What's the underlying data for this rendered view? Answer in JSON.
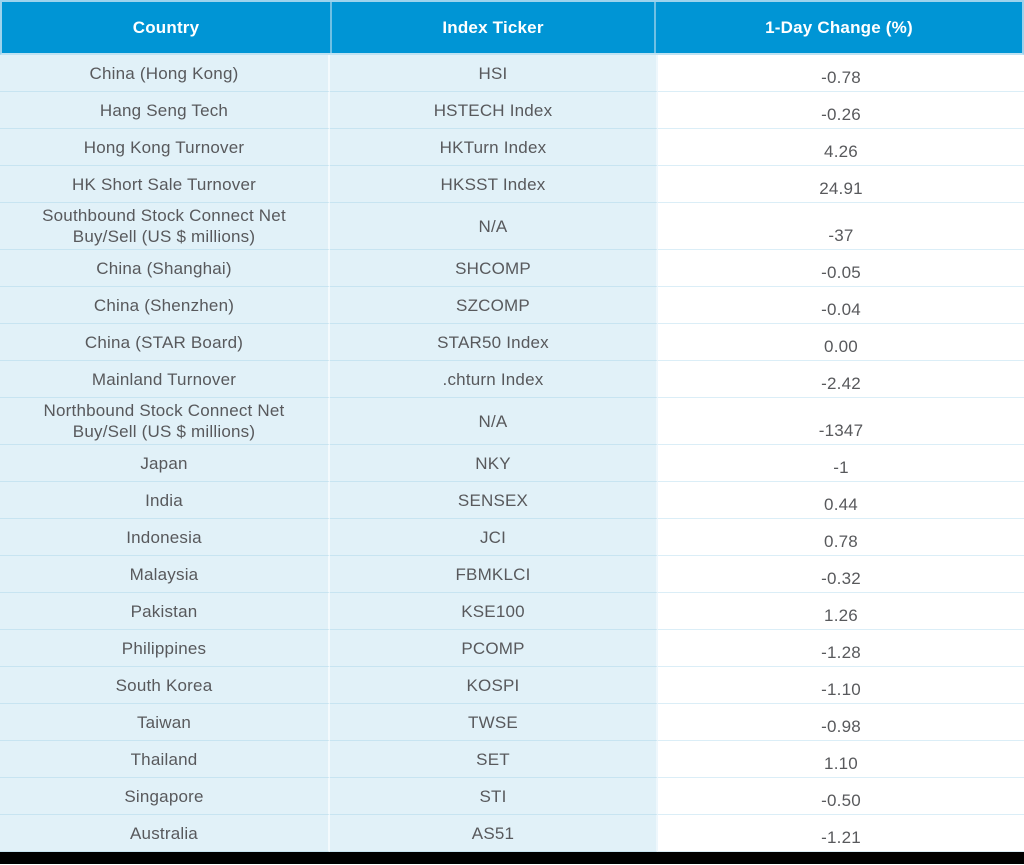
{
  "chart_data": {
    "type": "table",
    "title": "",
    "columns": [
      "Country",
      "Index Ticker",
      "1-Day Change (%)"
    ],
    "rows": [
      {
        "country": "China (Hong Kong)",
        "ticker": "HSI",
        "change": "-0.78"
      },
      {
        "country": "Hang Seng Tech",
        "ticker": "HSTECH Index",
        "change": "-0.26"
      },
      {
        "country": "Hong Kong Turnover",
        "ticker": "HKTurn Index",
        "change": "4.26"
      },
      {
        "country": "HK Short Sale Turnover",
        "ticker": "HKSST Index",
        "change": "24.91"
      },
      {
        "country": "Southbound Stock Connect Net\nBuy/Sell (US $ millions)",
        "ticker": "N/A",
        "change": "-37"
      },
      {
        "country": "China (Shanghai)",
        "ticker": "SHCOMP",
        "change": "-0.05"
      },
      {
        "country": "China (Shenzhen)",
        "ticker": "SZCOMP",
        "change": "-0.04"
      },
      {
        "country": "China (STAR Board)",
        "ticker": "STAR50 Index",
        "change": "0.00"
      },
      {
        "country": "Mainland Turnover",
        "ticker": ".chturn Index",
        "change": "-2.42"
      },
      {
        "country": "Northbound Stock Connect Net\nBuy/Sell (US $ millions)",
        "ticker": "N/A",
        "change": "-1347"
      },
      {
        "country": "Japan",
        "ticker": "NKY",
        "change": "-1"
      },
      {
        "country": "India",
        "ticker": "SENSEX",
        "change": "0.44"
      },
      {
        "country": "Indonesia",
        "ticker": "JCI",
        "change": "0.78"
      },
      {
        "country": "Malaysia",
        "ticker": "FBMKLCI",
        "change": "-0.32"
      },
      {
        "country": "Pakistan",
        "ticker": "KSE100",
        "change": "1.26"
      },
      {
        "country": "Philippines",
        "ticker": "PCOMP",
        "change": "-1.28"
      },
      {
        "country": "South Korea",
        "ticker": "KOSPI",
        "change": "-1.10"
      },
      {
        "country": "Taiwan",
        "ticker": "TWSE",
        "change": "-0.98"
      },
      {
        "country": "Thailand",
        "ticker": "SET",
        "change": "1.10"
      },
      {
        "country": "Singapore",
        "ticker": "STI",
        "change": "-0.50"
      },
      {
        "country": "Australia",
        "ticker": "AS51",
        "change": "-1.21"
      }
    ],
    "layout": {
      "header_position": "top",
      "gridlines": "horizontal",
      "value_column_alignment": "center"
    }
  },
  "colors": {
    "header_bg": "#0095d5",
    "header_text": "#ffffff",
    "header_divider": "#6fc0e4",
    "header_outer_border": "#9cd3ed",
    "row_bg_blue": "#e1f1f8",
    "value_column_bg": "#ffffff",
    "row_divider_blue": "#c7e4f1",
    "row_divider_white": "#dbeef7",
    "body_text": "#58595c",
    "bottom_bar": "#000000"
  }
}
